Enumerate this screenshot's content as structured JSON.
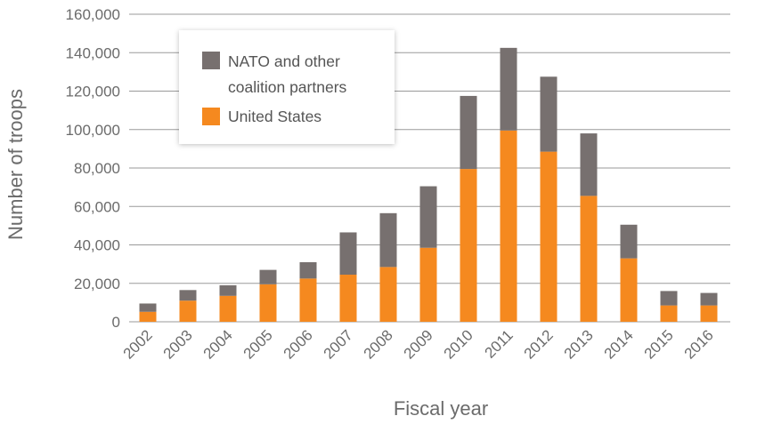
{
  "chart_data": {
    "type": "bar",
    "stacked": true,
    "categories": [
      "2002",
      "2003",
      "2004",
      "2005",
      "2006",
      "2007",
      "2008",
      "2009",
      "2010",
      "2011",
      "2012",
      "2013",
      "2014",
      "2015",
      "2016"
    ],
    "series": [
      {
        "name": "United States",
        "color": "#f5891f",
        "values": [
          5200,
          11000,
          13500,
          19500,
          22500,
          24500,
          28500,
          38500,
          79500,
          99500,
          88500,
          65500,
          33000,
          8500,
          8500
        ]
      },
      {
        "name": "NATO and other coalition partners",
        "color": "#77706f",
        "values": [
          4300,
          5500,
          5500,
          7500,
          8500,
          22000,
          28000,
          32000,
          38000,
          43000,
          39000,
          32500,
          17500,
          7500,
          6500
        ]
      }
    ],
    "legend_labels": [
      {
        "key": "nato",
        "lines": [
          "NATO and other",
          "coalition partners"
        ]
      },
      {
        "key": "us",
        "lines": [
          "United States"
        ]
      }
    ],
    "xlabel": "Fiscal year",
    "ylabel": "Number of troops",
    "ylim": [
      0,
      160000
    ],
    "yticks": [
      0,
      20000,
      40000,
      60000,
      80000,
      100000,
      120000,
      140000,
      160000
    ],
    "ytick_labels": [
      "0",
      "20,000",
      "40,000",
      "60,000",
      "80,000",
      "100,000",
      "120,000",
      "140,000",
      "160,000"
    ],
    "grid": true,
    "legend_position": "top-left"
  }
}
